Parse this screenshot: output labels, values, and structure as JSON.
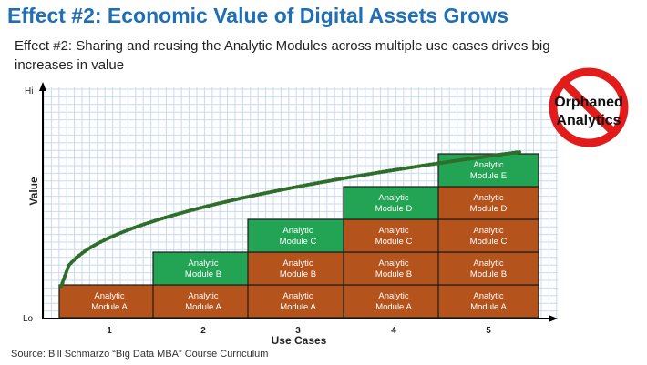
{
  "header": {
    "title": "Effect #2: Economic Value of Digital Assets Grows",
    "subtitle": "Effect #2:  Sharing and reusing the Analytic Modules across multiple use cases drives big increases in value"
  },
  "axes": {
    "y_title": "Value",
    "y_top": "Hi",
    "y_bottom": "Lo",
    "x_title": "Use Cases",
    "x_ticks": [
      "1",
      "2",
      "3",
      "4",
      "5"
    ]
  },
  "modules": [
    {
      "name": "Analytic Module A",
      "line1": "Analytic",
      "line2": "Module A"
    },
    {
      "name": "Analytic Module B",
      "line1": "Analytic",
      "line2": "Module B"
    },
    {
      "name": "Analytic Module C",
      "line1": "Analytic",
      "line2": "Module C"
    },
    {
      "name": "Analytic Module D",
      "line1": "Analytic",
      "line2": "Module D"
    },
    {
      "name": "Analytic Module E",
      "line1": "Analytic",
      "line2": "Module E"
    }
  ],
  "stacks": [
    {
      "use_case": "1",
      "count": 1
    },
    {
      "use_case": "2",
      "count": 2
    },
    {
      "use_case": "3",
      "count": 3
    },
    {
      "use_case": "4",
      "count": 4
    },
    {
      "use_case": "5",
      "count": 5
    }
  ],
  "badge": {
    "line1": "Orphaned",
    "line2": "Analytics",
    "icon": "no-symbol-icon"
  },
  "colors": {
    "title": "#1f6fb8",
    "old_module": "#b5531c",
    "new_module": "#23a455",
    "curve": "#2f6e2a",
    "grid": "#c9daf0",
    "no_symbol": "#e21b1b"
  },
  "source": "Source:  Bill Schmarzo “Big Data MBA” Course Curriculum"
}
